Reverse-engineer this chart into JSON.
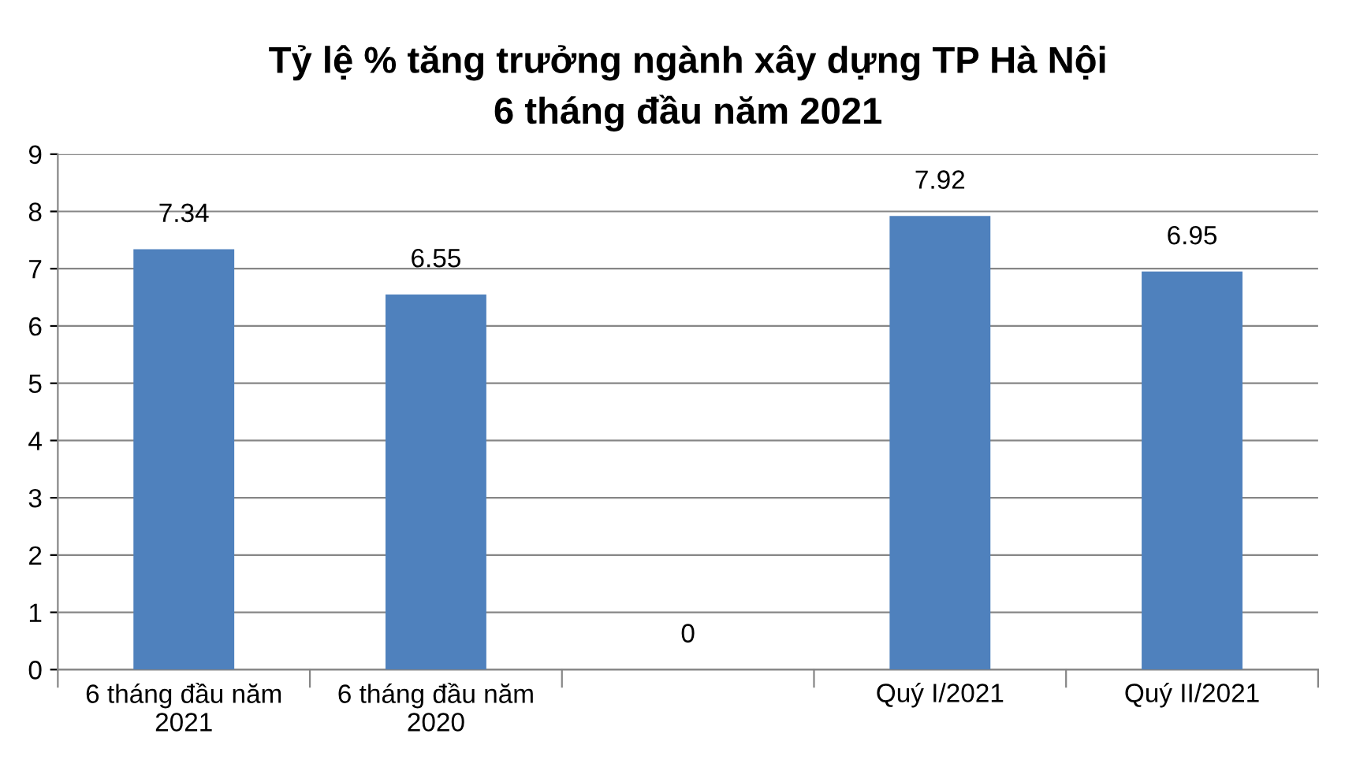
{
  "chart_data": {
    "type": "bar",
    "title": "Tỷ lệ % tăng trưởng ngành xây dựng TP Hà Nội\n6 tháng đầu năm 2021",
    "categories": [
      "6 tháng đầu năm 2021",
      "6 tháng đầu năm 2020",
      null,
      "Quý I/2021",
      "Quý II/2021"
    ],
    "values": [
      7.34,
      6.55,
      0,
      7.92,
      6.95
    ],
    "color": "#4f81bd",
    "ylim": [
      0,
      9
    ],
    "yticks": [
      0,
      1,
      2,
      3,
      4,
      5,
      6,
      7,
      8,
      9
    ],
    "grid": "y",
    "data_labels": true
  }
}
